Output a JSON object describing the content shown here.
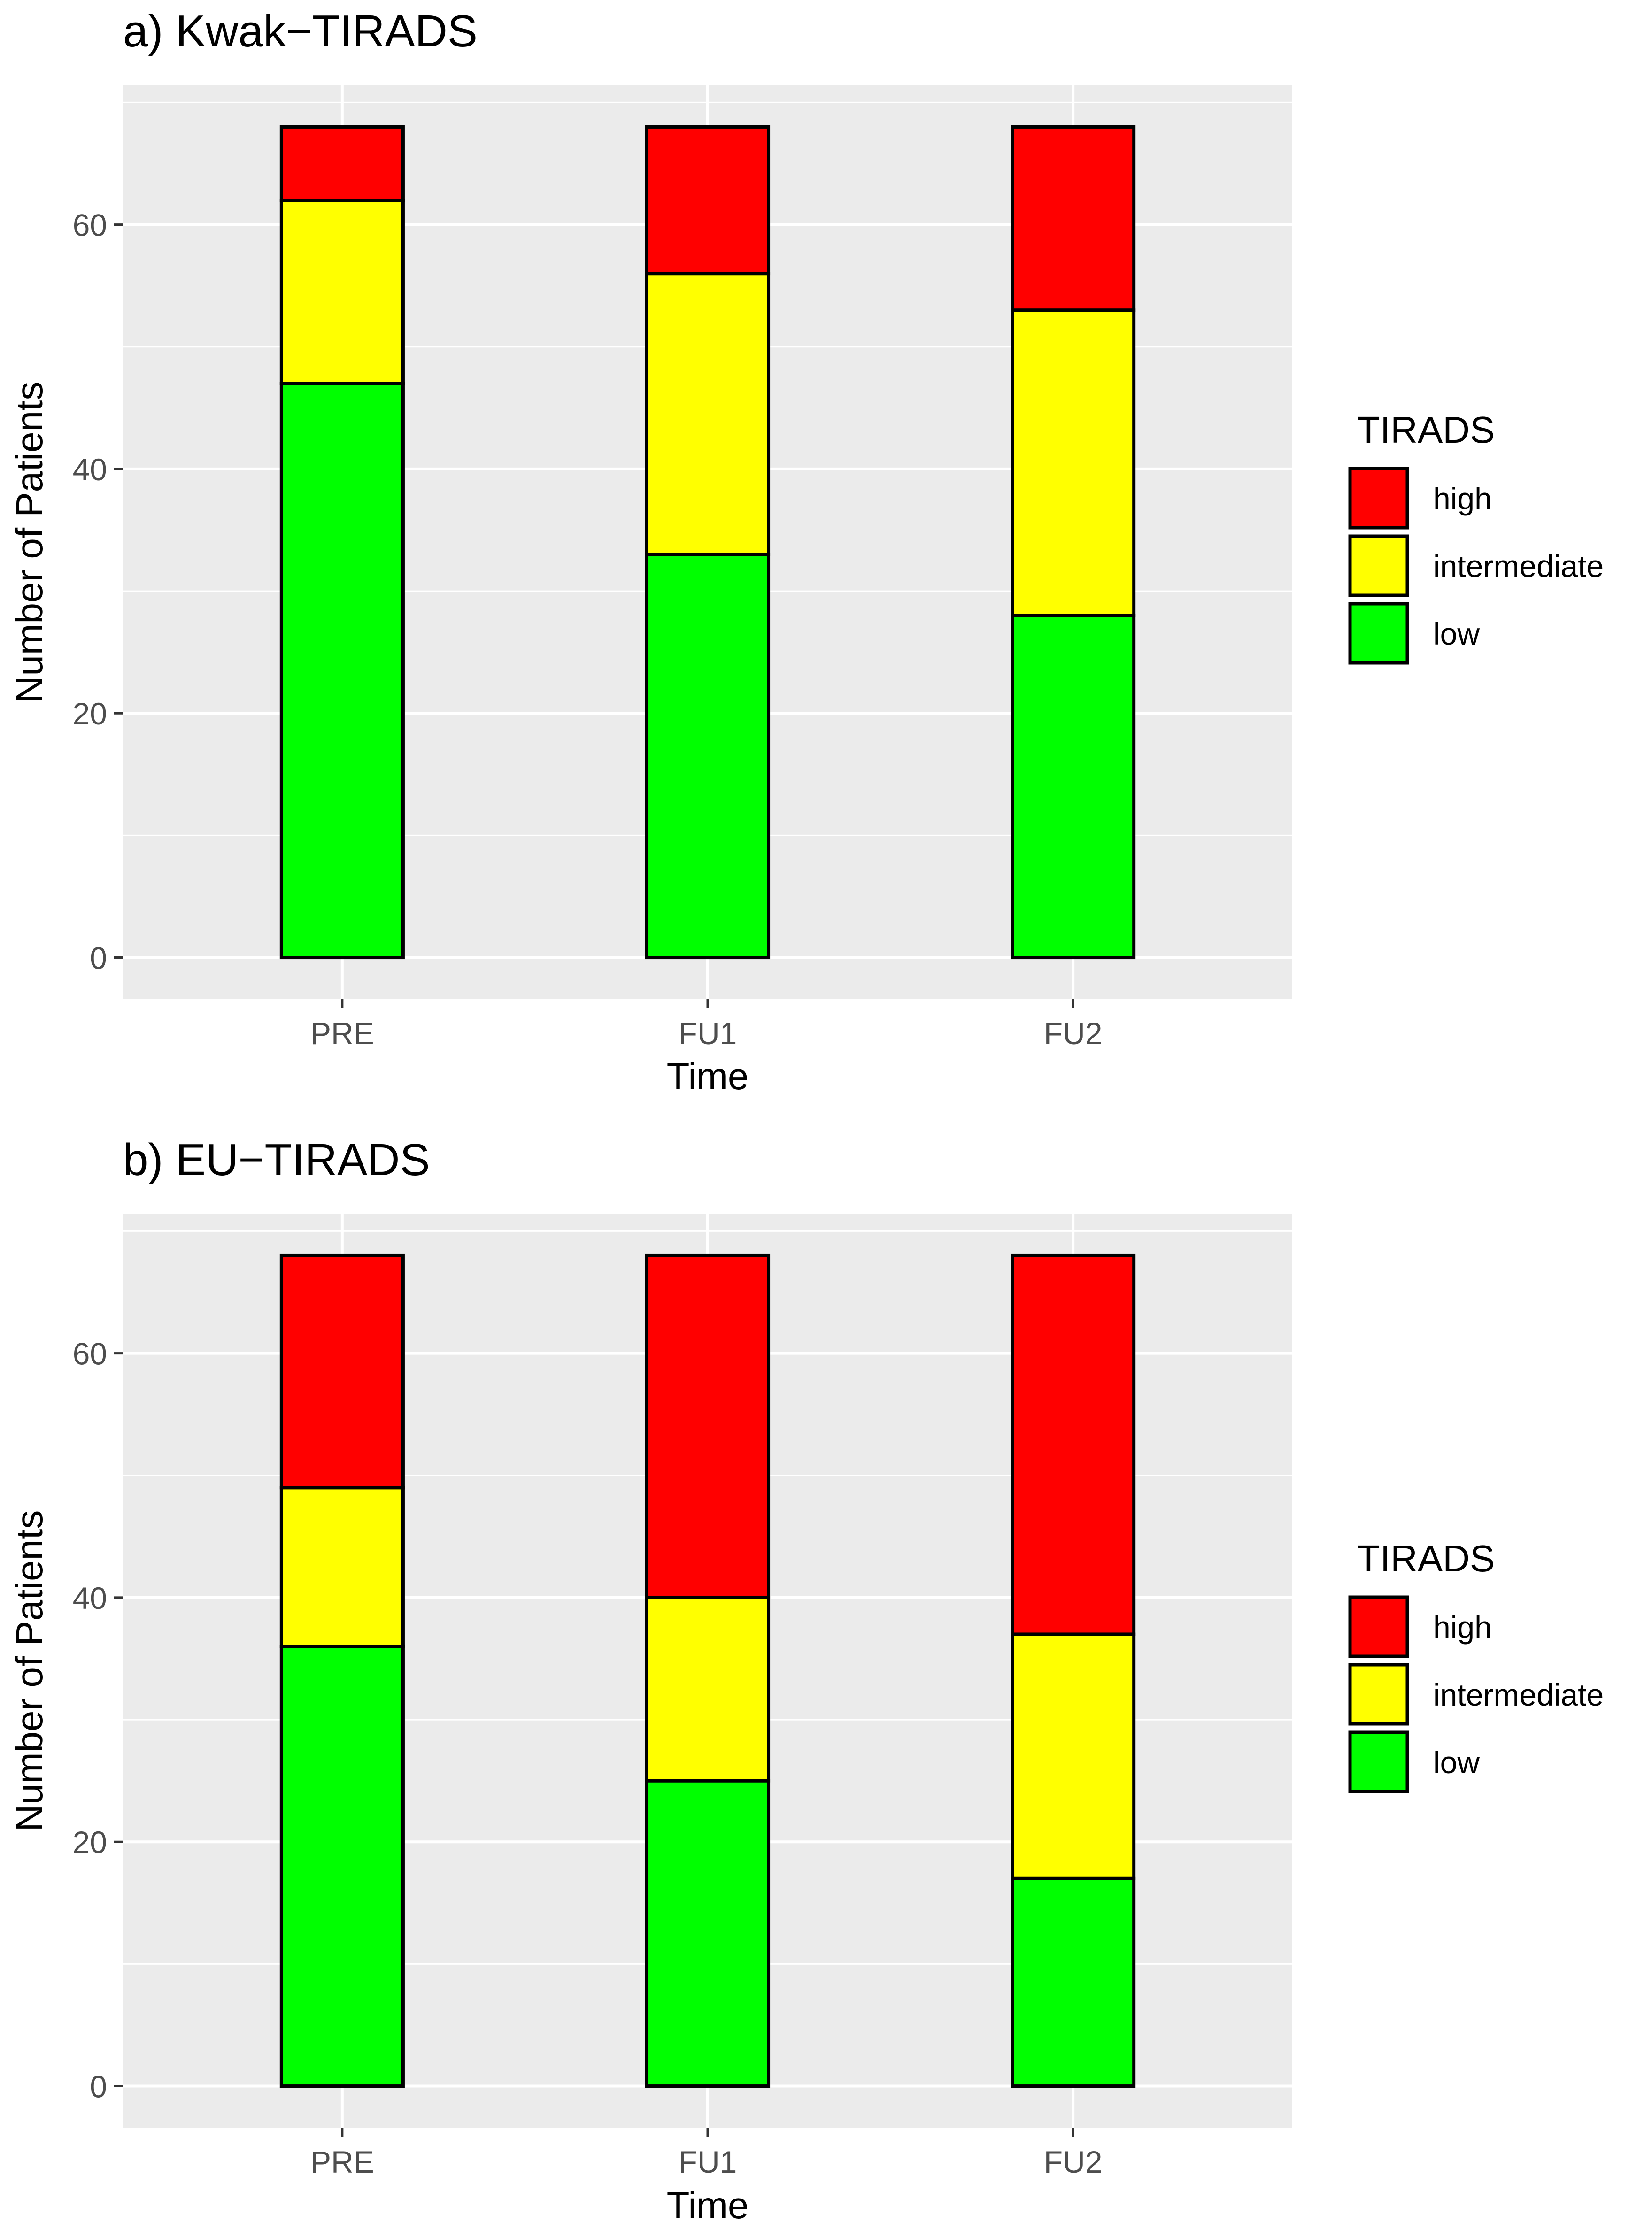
{
  "chart_data": [
    {
      "type": "bar",
      "stacked": true,
      "title": "a) Kwak−TIRADS",
      "xlabel": "Time",
      "ylabel": "Number of Patients",
      "categories": [
        "PRE",
        "FU1",
        "FU2"
      ],
      "ylim": [
        -3.4,
        71.4
      ],
      "yticks": [
        0,
        20,
        40,
        60
      ],
      "ytick_labels": [
        "0",
        "20",
        "40",
        "60"
      ],
      "series": [
        {
          "name": "low",
          "values": [
            47,
            33,
            28
          ],
          "color": "#00FF00"
        },
        {
          "name": "intermediate",
          "values": [
            15,
            23,
            25
          ],
          "color": "#FFFF00"
        },
        {
          "name": "high",
          "values": [
            6,
            12,
            15
          ],
          "color": "#FF0000"
        }
      ],
      "legend": {
        "title": "TIRADS",
        "position": "right",
        "entries": [
          "high",
          "intermediate",
          "low"
        ]
      }
    },
    {
      "type": "bar",
      "stacked": true,
      "title": "b) EU−TIRADS",
      "xlabel": "Time",
      "ylabel": "Number of Patients",
      "categories": [
        "PRE",
        "FU1",
        "FU2"
      ],
      "ylim": [
        -3.4,
        71.4
      ],
      "yticks": [
        0,
        20,
        40,
        60
      ],
      "ytick_labels": [
        "0",
        "20",
        "40",
        "60"
      ],
      "series": [
        {
          "name": "low",
          "values": [
            36,
            25,
            17
          ],
          "color": "#00FF00"
        },
        {
          "name": "intermediate",
          "values": [
            13,
            15,
            20
          ],
          "color": "#FFFF00"
        },
        {
          "name": "high",
          "values": [
            19,
            28,
            31
          ],
          "color": "#FF0000"
        }
      ],
      "legend": {
        "title": "TIRADS",
        "position": "right",
        "entries": [
          "high",
          "intermediate",
          "low"
        ]
      }
    }
  ],
  "style": {
    "panel_background": "#EBEBEB",
    "grid_color": "#FFFFFF",
    "tick_text_color": "#4D4D4D",
    "bar_outline": "#000000"
  }
}
